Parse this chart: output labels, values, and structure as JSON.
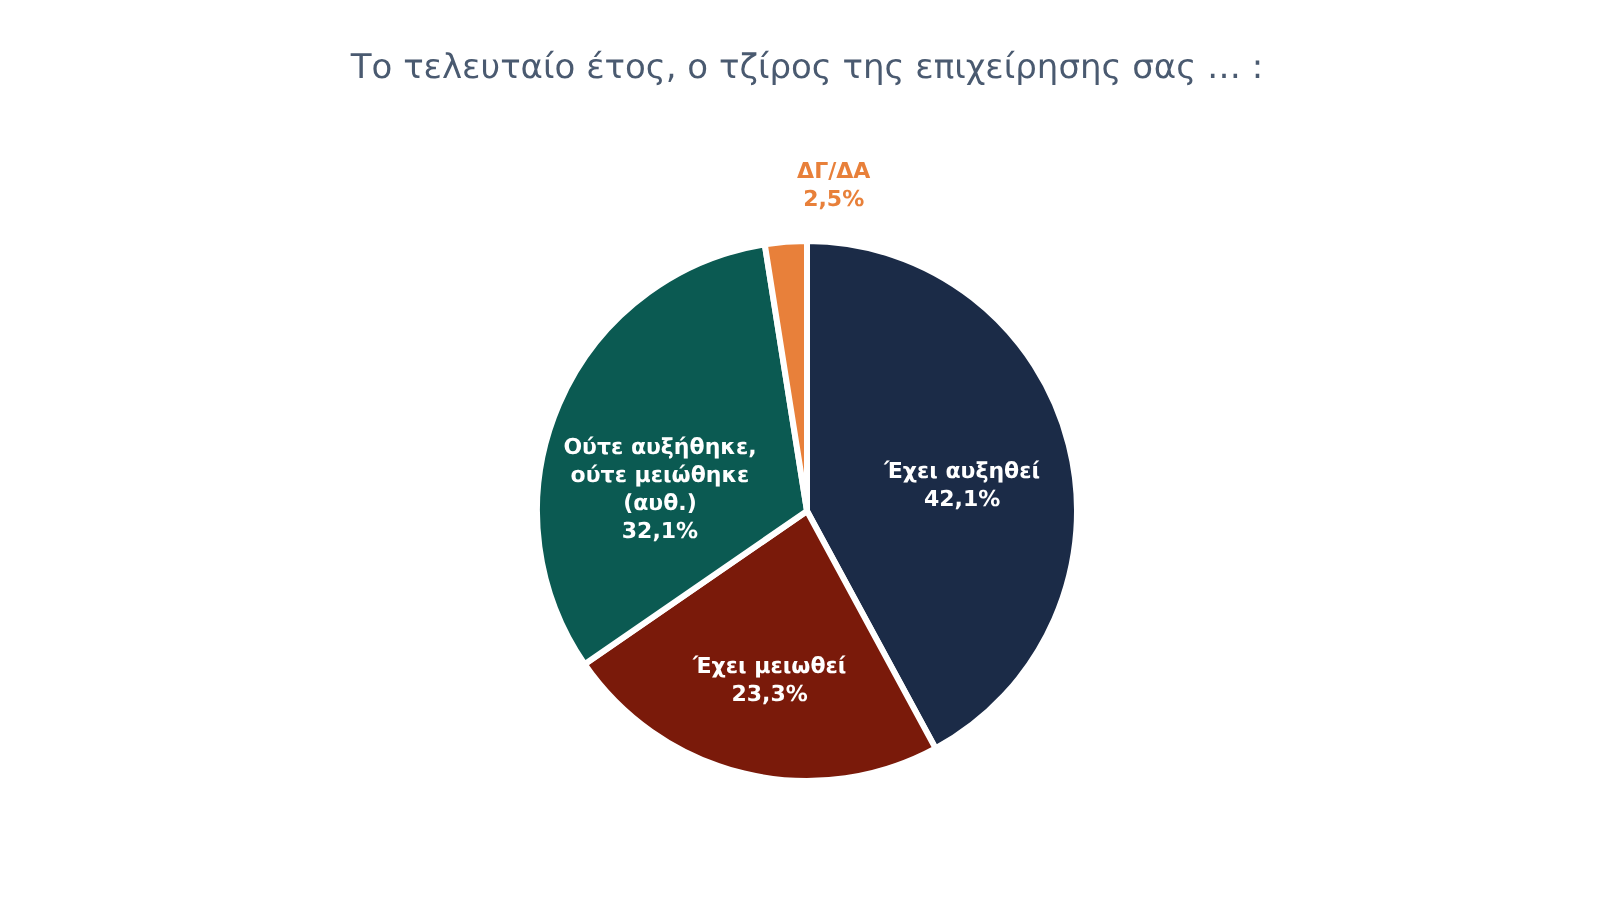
{
  "chart_data": {
    "type": "pie",
    "title": "Το τελευταίο έτος, ο τζίρος της επιχείρησης σας … :",
    "categories": [
      "Έχει αυξηθεί",
      "Έχει μειωθεί",
      "Ούτε αυξήθηκε, ούτε μειώθηκε (αυθ.)",
      "ΔΓ/ΔΑ"
    ],
    "values": [
      42.1,
      23.3,
      32.1,
      2.5
    ],
    "colors": [
      "#1b2b47",
      "#7a1a0a",
      "#0b5a52",
      "#e8803a"
    ],
    "value_labels": [
      "42,1%",
      "23,3%",
      "32,1%",
      "2,5%"
    ],
    "legend": false
  }
}
